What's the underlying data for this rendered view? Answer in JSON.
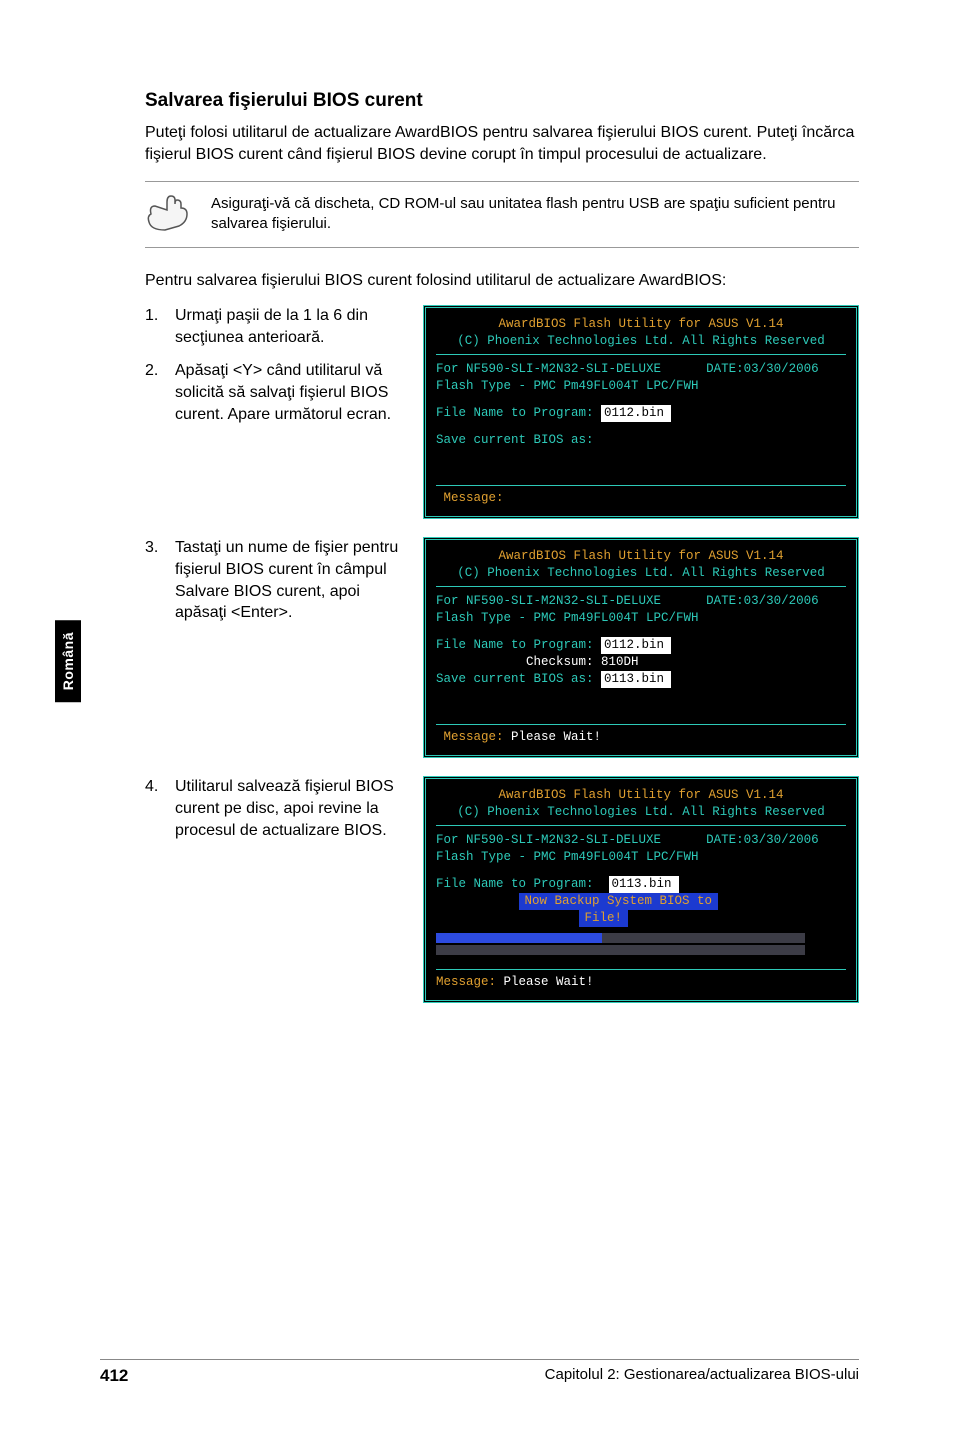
{
  "heading": "Salvarea fişierului BIOS curent",
  "intro": "Puteţi folosi utilitarul de actualizare AwardBIOS pentru salvarea fişierului BIOS curent. Puteţi încărca fişierul BIOS curent când fişierul BIOS devine corupt în timpul procesului de actualizare.",
  "note": "Asiguraţi-vă că discheta, CD ROM-ul sau unitatea flash pentru USB are spaţiu suficient pentru salvarea fişierului.",
  "lead": "Pentru salvarea fişierului BIOS curent folosind utilitarul de actualizare AwardBIOS:",
  "steps": {
    "s1": "Urmaţi paşii de la 1 la 6 din secţiunea anterioară.",
    "s2": "Apăsaţi <Y> când utilitarul vă solicită să salvaţi fişierul BIOS curent. Apare următorul ecran.",
    "s3": "Tastaţi un nume de fişier pentru fişierul BIOS curent în câmpul Salvare BIOS curent, apoi apăsaţi <Enter>.",
    "s4": "Utilitarul salvează fişierul BIOS curent pe disc, apoi revine la procesul de actualizare BIOS."
  },
  "terminal_common": {
    "title1": "AwardBIOS Flash Utility for ASUS V1.14",
    "title2": "(C) Phoenix Technologies Ltd. All Rights Reserved",
    "forline_left": "For NF590-SLI-M2N32-SLI-DELUXE",
    "forline_right": "DATE:03/30/2006",
    "flashtype": "Flash Type - PMC Pm49FL004T LPC/FWH",
    "filename_label": "File Name to Program:",
    "save_label": "Save current BIOS as:",
    "checksum_label": "Checksum:",
    "msg_label": "Message:"
  },
  "term1": {
    "filename_val": "0112.bin",
    "save_val": ""
  },
  "term2": {
    "filename_val": "0112.bin",
    "checksum_val": "810DH",
    "save_val": "0113.bin",
    "msg_text": "Please Wait!"
  },
  "term3": {
    "filename_val": "0113.bin",
    "backup1": "Now Backup System BIOS to",
    "backup2": "File!",
    "progress1_pct": 45,
    "progress2_pct": 0,
    "msg_text": "Please Wait!"
  },
  "side_tab": "Română",
  "footer": {
    "page": "412",
    "chapter": "Capitolul 2: Gestionarea/actualizarea BIOS-ului"
  },
  "colors": {
    "teal": "#2dc9b8",
    "amber": "#e0a030",
    "blue_bg": "#1c3ad0",
    "prog_fg": "#2d4be0",
    "prog_bg": "#3c3c46"
  }
}
